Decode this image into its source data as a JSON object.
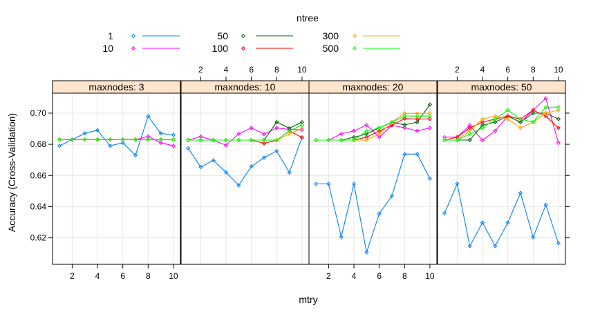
{
  "chart_data": {
    "type": "line",
    "xlabel": "mtry",
    "ylabel": "Accuracy (Cross-Validation)",
    "ylim": [
      0.603,
      0.7128
    ],
    "xlim": [
      0.45,
      10.55
    ],
    "x_ticks": [
      2,
      4,
      6,
      8,
      10
    ],
    "y_ticks": [
      0.62,
      0.64,
      0.66,
      0.68,
      0.7
    ],
    "y_tick_labels": [
      "0.62",
      "0.64",
      "0.66",
      "0.68",
      "0.70"
    ],
    "grid": true,
    "legend": {
      "title": "ntree",
      "placement": "top",
      "entries": [
        {
          "label": "1",
          "color": "#0080ff"
        },
        {
          "label": "10",
          "color": "#ff00ff"
        },
        {
          "label": "50",
          "color": "#006400"
        },
        {
          "label": "100",
          "color": "#ff0000"
        },
        {
          "label": "300",
          "color": "#ffa500"
        },
        {
          "label": "500",
          "color": "#00ff00"
        }
      ]
    },
    "x": [
      1,
      2,
      3,
      4,
      5,
      6,
      7,
      8,
      9,
      10
    ],
    "panels": [
      {
        "strip": "maxnodes:  3",
        "series": [
          {
            "name": "1",
            "values": [
              0.679,
              0.683,
              0.687,
              0.689,
              0.679,
              0.681,
              0.673,
              0.698,
              0.687,
              0.686
            ]
          },
          {
            "name": "10",
            "values": [
              0.683,
              0.683,
              0.683,
              0.683,
              0.683,
              0.683,
              0.683,
              0.685,
              0.681,
              0.679
            ]
          },
          {
            "name": "50",
            "values": [
              0.683,
              0.683,
              0.683,
              0.683,
              0.683,
              0.683,
              0.683,
              0.683,
              0.683,
              0.683
            ]
          },
          {
            "name": "100",
            "values": [
              0.683,
              0.683,
              0.683,
              0.683,
              0.683,
              0.683,
              0.683,
              0.683,
              0.683,
              0.683
            ]
          },
          {
            "name": "300",
            "values": [
              0.683,
              0.683,
              0.683,
              0.683,
              0.683,
              0.683,
              0.683,
              0.683,
              0.683,
              0.683
            ]
          },
          {
            "name": "500",
            "values": [
              0.683,
              0.683,
              0.683,
              0.683,
              0.683,
              0.683,
              0.683,
              0.683,
              0.683,
              0.683
            ]
          }
        ]
      },
      {
        "strip": "maxnodes: 10",
        "series": [
          {
            "name": "1",
            "values": [
              0.6775,
              0.6654,
              0.6697,
              0.662,
              0.6537,
              0.6658,
              0.6714,
              0.6757,
              0.6619,
              0.6844
            ]
          },
          {
            "name": "10",
            "values": [
              0.6827,
              0.6849,
              0.6826,
              0.6794,
              0.6867,
              0.6905,
              0.6865,
              0.6905,
              0.6895,
              0.6893
            ]
          },
          {
            "name": "50",
            "values": [
              0.6827,
              0.6827,
              0.6827,
              0.6827,
              0.6827,
              0.6827,
              0.6827,
              0.6942,
              0.6903,
              0.6942
            ]
          },
          {
            "name": "100",
            "values": [
              0.6827,
              0.6827,
              0.6827,
              0.6827,
              0.6827,
              0.6827,
              0.6806,
              0.6826,
              0.6886,
              0.6844
            ]
          },
          {
            "name": "300",
            "values": [
              0.6827,
              0.6827,
              0.6827,
              0.6827,
              0.6827,
              0.6827,
              0.6827,
              0.6827,
              0.6866,
              0.6903
            ]
          },
          {
            "name": "500",
            "values": [
              0.6827,
              0.6827,
              0.6827,
              0.6827,
              0.6827,
              0.6827,
              0.6827,
              0.6827,
              0.6886,
              0.6923
            ]
          }
        ]
      },
      {
        "strip": "maxnodes: 20",
        "series": [
          {
            "name": "1",
            "values": [
              0.6546,
              0.6546,
              0.6206,
              0.6546,
              0.6107,
              0.6355,
              0.6469,
              0.6737,
              0.6737,
              0.658
            ]
          },
          {
            "name": "10",
            "values": [
              0.6827,
              0.6827,
              0.6867,
              0.6886,
              0.6923,
              0.6846,
              0.6922,
              0.6906,
              0.6886,
              0.6905
            ]
          },
          {
            "name": "50",
            "values": [
              0.6827,
              0.6827,
              0.6827,
              0.6845,
              0.6866,
              0.6905,
              0.6942,
              0.6925,
              0.6942,
              0.7055
            ]
          },
          {
            "name": "100",
            "values": [
              0.6827,
              0.6827,
              0.6827,
              0.6827,
              0.6846,
              0.6885,
              0.6922,
              0.6965,
              0.6962,
              0.6963
            ]
          },
          {
            "name": "300",
            "values": [
              0.6827,
              0.6827,
              0.6827,
              0.6827,
              0.6827,
              0.6866,
              0.6942,
              0.6999,
              0.6998,
              0.6999
            ]
          },
          {
            "name": "500",
            "values": [
              0.6827,
              0.6827,
              0.6827,
              0.6827,
              0.6885,
              0.6905,
              0.6942,
              0.6981,
              0.6981,
              0.6981
            ]
          }
        ]
      },
      {
        "strip": "maxnodes: 50",
        "series": [
          {
            "name": "1",
            "values": [
              0.6357,
              0.6547,
              0.6147,
              0.6298,
              0.6147,
              0.6298,
              0.6488,
              0.6203,
              0.6412,
              0.6165
            ]
          },
          {
            "name": "10",
            "values": [
              0.6846,
              0.6846,
              0.6922,
              0.6826,
              0.6886,
              0.6981,
              0.6942,
              0.7019,
              0.7095,
              0.6809
            ]
          },
          {
            "name": "50",
            "values": [
              0.6827,
              0.6827,
              0.6827,
              0.6924,
              0.6942,
              0.6981,
              0.6942,
              0.7,
              0.7,
              0.6962
            ]
          },
          {
            "name": "100",
            "values": [
              0.6827,
              0.6846,
              0.6905,
              0.6942,
              0.6962,
              0.6981,
              0.6962,
              0.7019,
              0.6981,
              0.6905
            ]
          },
          {
            "name": "300",
            "values": [
              0.6827,
              0.6827,
              0.6886,
              0.6962,
              0.6981,
              0.6962,
              0.6905,
              0.6942,
              0.7,
              0.7019
            ]
          },
          {
            "name": "500",
            "values": [
              0.6827,
              0.6827,
              0.6866,
              0.6905,
              0.6962,
              0.7019,
              0.6962,
              0.6942,
              0.7038,
              0.7038
            ]
          }
        ]
      }
    ]
  }
}
